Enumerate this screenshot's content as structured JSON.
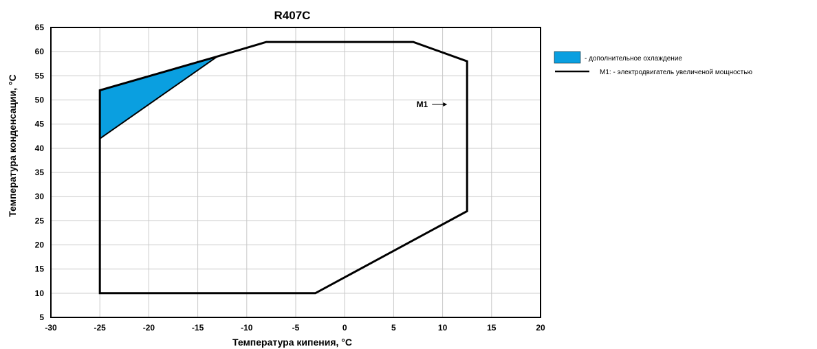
{
  "chart_data": {
    "type": "area",
    "title": "R407C",
    "xlabel": "Температура кипения, °С",
    "ylabel": "Температура конденсации, °С",
    "xlim": [
      -30,
      20
    ],
    "ylim": [
      5,
      65
    ],
    "x_ticks": [
      -30,
      -25,
      -20,
      -15,
      -10,
      -5,
      0,
      5,
      10,
      15,
      20
    ],
    "y_ticks": [
      5,
      10,
      15,
      20,
      25,
      30,
      35,
      40,
      45,
      50,
      55,
      60,
      65
    ],
    "grid": true,
    "legend_position": "right",
    "series": [
      {
        "name": "- дополнительное охлаждение",
        "kind": "filled-area",
        "color": "#0a9fe0",
        "points": [
          [
            -25,
            52
          ],
          [
            -13,
            59
          ],
          [
            -25,
            42
          ]
        ]
      },
      {
        "name": "М1: - электродвигатель увеличеной мощностью",
        "kind": "outline",
        "color": "#000000",
        "points": [
          [
            -25,
            52
          ],
          [
            -13,
            59
          ],
          [
            -8,
            62
          ],
          [
            7,
            62
          ],
          [
            12.5,
            58
          ],
          [
            12.5,
            27
          ],
          [
            -3,
            10
          ],
          [
            -25,
            10
          ],
          [
            -25,
            42
          ]
        ]
      }
    ],
    "annotations": [
      {
        "text": "M1",
        "x": 8.5,
        "y": 48.5,
        "arrow": true
      }
    ]
  }
}
